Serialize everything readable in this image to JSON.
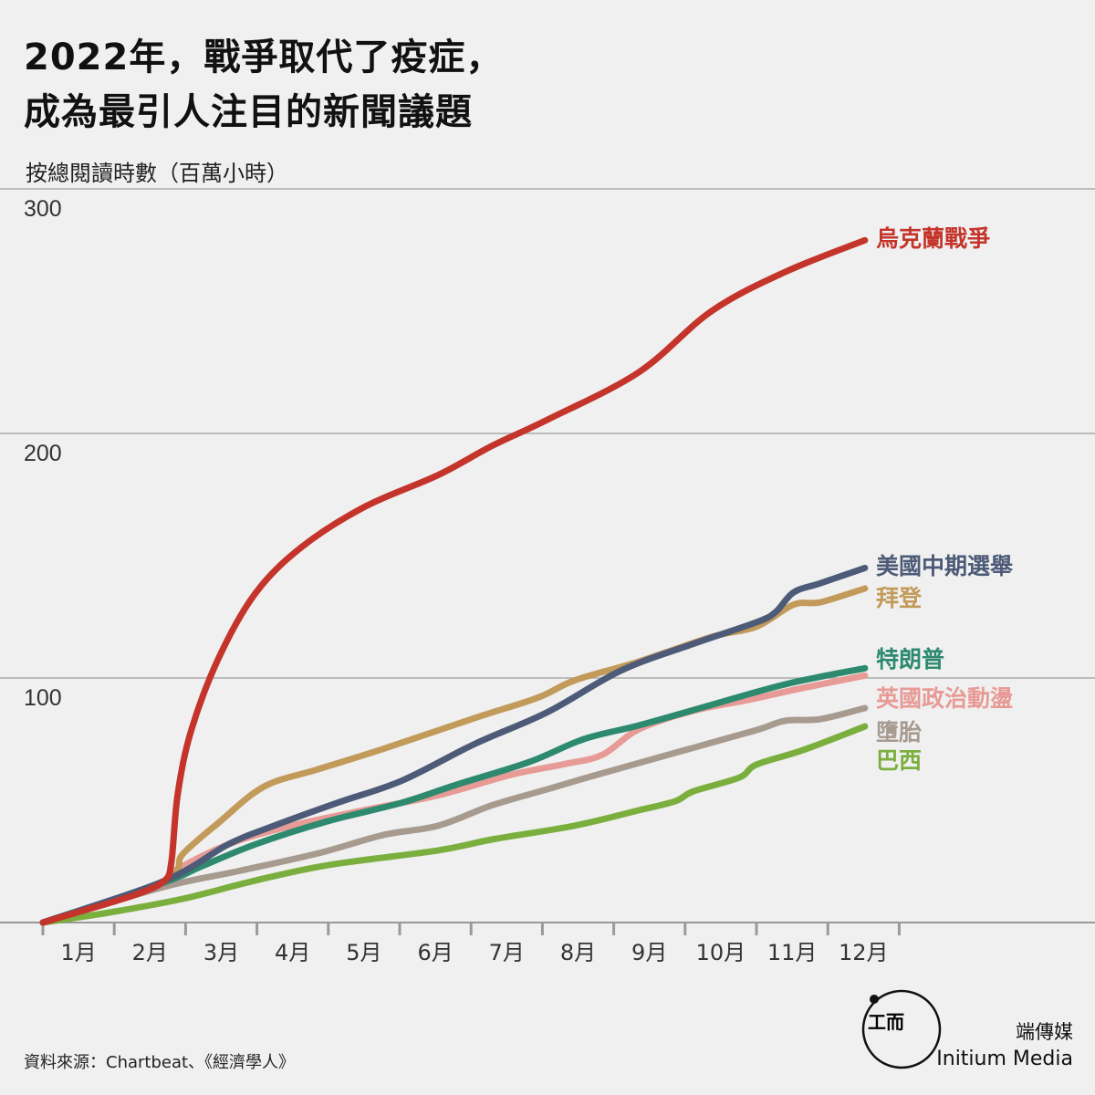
{
  "title_line1": "2022年，戰爭取代了疫症，",
  "title_line2": "成為最引人注目的新聞議題",
  "source": "資料來源：Chartbeat、《經濟學人》",
  "brand": {
    "name_cn": "端傳媒",
    "name_en": "Initium Media"
  },
  "chart_data": {
    "type": "line",
    "ylabel": "按總閱讀時數（百萬小時）",
    "ylim": [
      0,
      300
    ],
    "yticks": [
      100,
      200,
      300
    ],
    "xlim": [
      0,
      12
    ],
    "grid": true,
    "xticks": [
      "1月",
      "2月",
      "3月",
      "4月",
      "5月",
      "6月",
      "7月",
      "8月",
      "9月",
      "10月",
      "11月",
      "12月"
    ],
    "series": [
      {
        "name": "烏克蘭戰爭",
        "color": "#c4342a",
        "points": [
          [
            0,
            0
          ],
          [
            0.7,
            6
          ],
          [
            1.32,
            11.6
          ],
          [
            1.7,
            17
          ],
          [
            1.8,
            24.6
          ],
          [
            1.89,
            52.6
          ],
          [
            2.08,
            78.7
          ],
          [
            2.47,
            108.6
          ],
          [
            2.98,
            134.7
          ],
          [
            3.62,
            153.4
          ],
          [
            4.51,
            170
          ],
          [
            5.54,
            183
          ],
          [
            6.3,
            195
          ],
          [
            7.07,
            205.6
          ],
          [
            8.35,
            225
          ],
          [
            9.37,
            250
          ],
          [
            10.4,
            266
          ],
          [
            11.52,
            279
          ]
        ]
      },
      {
        "name": "美國中期選舉",
        "color": "#4d5b78",
        "points": [
          [
            0,
            0
          ],
          [
            1.7,
            17
          ],
          [
            2.6,
            32
          ],
          [
            3.24,
            39.6
          ],
          [
            4.13,
            49
          ],
          [
            5.03,
            58
          ],
          [
            6.05,
            73
          ],
          [
            7.07,
            86
          ],
          [
            8.1,
            103
          ],
          [
            9.12,
            114
          ],
          [
            10.0,
            122.8
          ],
          [
            10.27,
            127
          ],
          [
            10.52,
            135
          ],
          [
            10.9,
            138.8
          ],
          [
            11.52,
            145
          ]
        ]
      },
      {
        "name": "拜登",
        "color": "#c29a5a",
        "points": [
          [
            0,
            0
          ],
          [
            1.7,
            17
          ],
          [
            1.96,
            28
          ],
          [
            2.47,
            41
          ],
          [
            3.1,
            55.6
          ],
          [
            3.86,
            62.7
          ],
          [
            4.77,
            71
          ],
          [
            6.05,
            83.6
          ],
          [
            6.94,
            92
          ],
          [
            7.45,
            99
          ],
          [
            8.35,
            106.7
          ],
          [
            9.37,
            116.8
          ],
          [
            10.0,
            121
          ],
          [
            10.52,
            130
          ],
          [
            10.9,
            131
          ],
          [
            11.52,
            136.6
          ]
        ]
      },
      {
        "name": "特朗普",
        "color": "#2e8a6e",
        "points": [
          [
            0,
            0
          ],
          [
            1.7,
            16.4
          ],
          [
            2.21,
            22.8
          ],
          [
            2.98,
            32
          ],
          [
            3.99,
            41.4
          ],
          [
            5.03,
            49
          ],
          [
            5.79,
            56.3
          ],
          [
            6.82,
            65.7
          ],
          [
            7.58,
            75
          ],
          [
            8.35,
            80.6
          ],
          [
            9.25,
            88
          ],
          [
            10.4,
            97.4
          ],
          [
            11.52,
            104
          ]
        ]
      },
      {
        "name": "英國政治動盪",
        "color": "#e79a96",
        "points": [
          [
            0,
            0
          ],
          [
            1.57,
            15.3
          ],
          [
            1.83,
            21
          ],
          [
            2.6,
            32
          ],
          [
            3.49,
            39.6
          ],
          [
            4.51,
            46
          ],
          [
            5.54,
            52
          ],
          [
            6.56,
            60.4
          ],
          [
            7.33,
            64.9
          ],
          [
            7.84,
            68.6
          ],
          [
            8.35,
            79
          ],
          [
            9.12,
            86.6
          ],
          [
            9.88,
            91
          ],
          [
            10.65,
            95.9
          ],
          [
            11.52,
            101
          ]
        ]
      },
      {
        "name": "墮胎",
        "color": "#a79a8f",
        "points": [
          [
            0,
            0
          ],
          [
            1.7,
            14.6
          ],
          [
            2.72,
            20.9
          ],
          [
            3.87,
            28.4
          ],
          [
            4.77,
            35.8
          ],
          [
            5.54,
            39.6
          ],
          [
            6.3,
            48
          ],
          [
            7.07,
            54.5
          ],
          [
            7.71,
            60
          ],
          [
            8.86,
            69.4
          ],
          [
            10.0,
            78.7
          ],
          [
            10.4,
            82.5
          ],
          [
            10.9,
            83.2
          ],
          [
            11.52,
            87.7
          ]
        ]
      },
      {
        "name": "巴西",
        "color": "#7aaf3e",
        "points": [
          [
            0,
            0
          ],
          [
            0.93,
            4.1
          ],
          [
            1.96,
            9.7
          ],
          [
            2.98,
            17.2
          ],
          [
            4.0,
            23.5
          ],
          [
            5.54,
            29.5
          ],
          [
            6.3,
            34
          ],
          [
            7.45,
            39.6
          ],
          [
            8.35,
            45.9
          ],
          [
            8.86,
            49.6
          ],
          [
            9.12,
            53.7
          ],
          [
            9.76,
            59.3
          ],
          [
            10.0,
            64.6
          ],
          [
            10.65,
            70.5
          ],
          [
            11.52,
            80.2
          ]
        ]
      }
    ]
  }
}
